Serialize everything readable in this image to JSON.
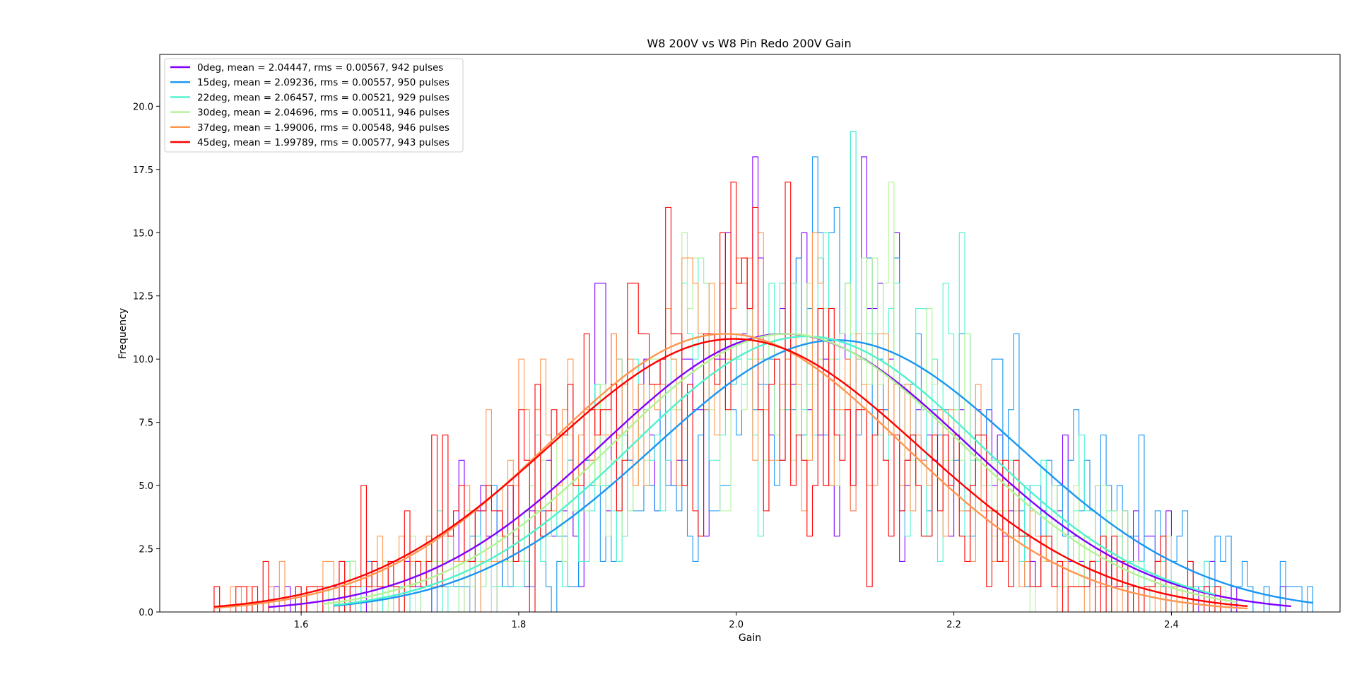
{
  "chart_data": {
    "type": "histogram_with_gaussian_fits",
    "title": "W8 200V vs W8 Pin Redo 200V Gain",
    "xlabel": "Gain",
    "ylabel": "Frequency",
    "xlim": [
      1.47,
      2.555
    ],
    "ylim": [
      0.0,
      22.05
    ],
    "xticks": [
      "1.6",
      "1.8",
      "2.0",
      "2.2",
      "2.4"
    ],
    "yticks": [
      "0.0",
      "2.5",
      "5.0",
      "7.5",
      "10.0",
      "12.5",
      "15.0",
      "17.5",
      "20.0"
    ],
    "grid": false,
    "legend_position": "top-left",
    "series": [
      {
        "label": "0deg, mean = 2.04447, rms = 0.00567, 942 pulses",
        "color": "#8000ff",
        "mean": 2.04447,
        "peak": 11.0,
        "sigma": 0.167,
        "fit_range": [
          1.57,
          2.51
        ],
        "hist_range": [
          1.57,
          2.51
        ]
      },
      {
        "label": "15deg, mean = 2.09236, rms = 0.00557, 950 pulses",
        "color": "#1996f3",
        "mean": 2.09236,
        "peak": 10.75,
        "sigma": 0.168,
        "fit_range": [
          1.63,
          2.53
        ],
        "hist_range": [
          1.63,
          2.53
        ]
      },
      {
        "label": "22deg, mean = 2.06457, rms = 0.00521, 929 pulses",
        "color": "#4df3ce",
        "mean": 2.06457,
        "peak": 10.9,
        "sigma": 0.16,
        "fit_range": [
          1.63,
          2.44
        ],
        "hist_range": [
          1.63,
          2.44
        ]
      },
      {
        "label": "30deg, mean = 2.04696, rms = 0.00511, 946 pulses",
        "color": "#b2f396",
        "mean": 2.04696,
        "peak": 11.0,
        "sigma": 0.16,
        "fit_range": [
          1.62,
          2.46
        ],
        "hist_range": [
          1.62,
          2.46
        ]
      },
      {
        "label": "37deg, mean = 1.99006, rms = 0.00548, 946 pulses",
        "color": "#ff964f",
        "mean": 1.99006,
        "peak": 11.0,
        "sigma": 0.162,
        "fit_range": [
          1.52,
          2.47
        ],
        "hist_range": [
          1.52,
          2.47
        ]
      },
      {
        "label": "45deg, mean = 1.99789, rms = 0.00577, 943 pulses",
        "color": "#ff0000",
        "mean": 1.99789,
        "peak": 10.8,
        "sigma": 0.17,
        "fit_range": [
          1.52,
          2.47
        ],
        "hist_range": [
          1.52,
          2.47
        ]
      }
    ]
  }
}
